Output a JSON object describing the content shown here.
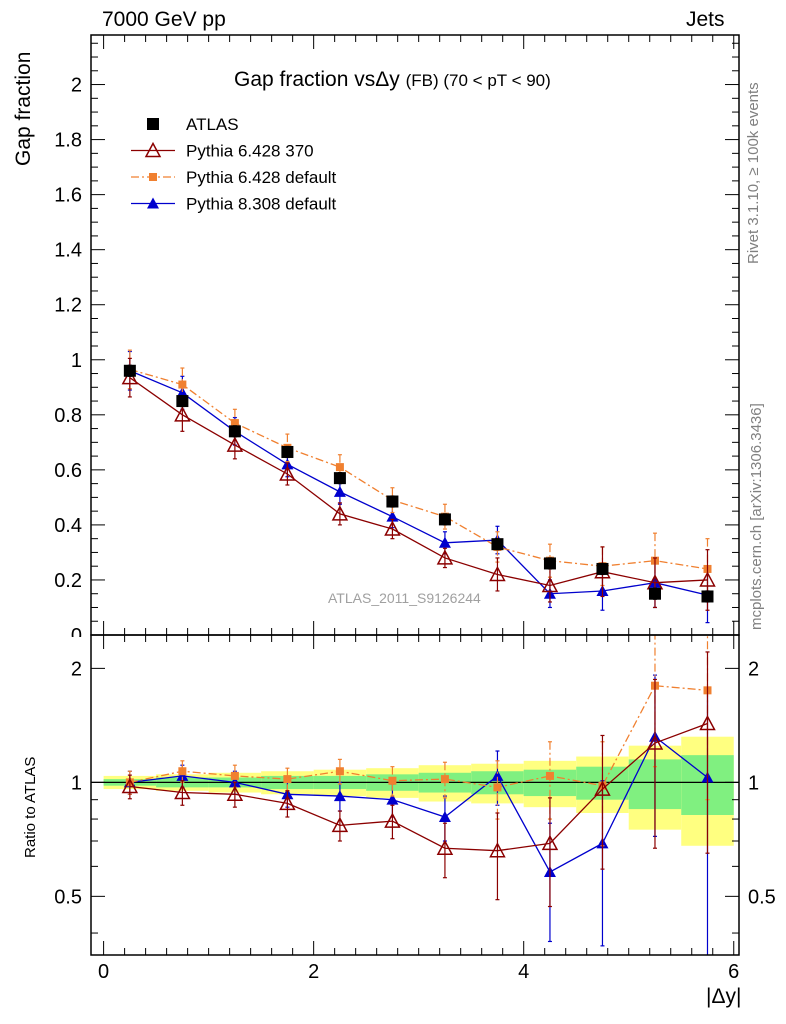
{
  "header": {
    "energy": "7000 GeV pp",
    "category": "Jets"
  },
  "side_labels": {
    "rivet": "Rivet 3.1.10, ≥ 100k events",
    "mcplots": "mcplots.cern.ch [arXiv:1306.3436]"
  },
  "chart_data": {
    "type": "scatter",
    "title_main": "Gap fraction vsΔy",
    "title_sub": "(FB) (70 < pT <  90)",
    "watermark": "ATLAS_2011_S9126244",
    "xlabel": "|Δy|",
    "ylabel": "Gap fraction",
    "ratio_ylabel": "Ratio to ATLAS",
    "xlim": [
      -0.12,
      6.05
    ],
    "ylim": [
      0,
      2.18
    ],
    "ratio_ylim": [
      0.35,
      2.45
    ],
    "x_ticks": [
      "0",
      "2",
      "4",
      "6"
    ],
    "y_ticks": [
      "0.2",
      "0.4",
      "0.6",
      "0.8",
      "1",
      "1.2",
      "1.4",
      "1.6",
      "1.8",
      "2"
    ],
    "ratio_ticks": [
      "0.5",
      "1",
      "2"
    ],
    "x": [
      0.25,
      0.75,
      1.25,
      1.75,
      2.25,
      2.75,
      3.25,
      3.75,
      4.25,
      4.75,
      5.25,
      5.75
    ],
    "legend_position": "top-left",
    "band_inner": [
      0.02,
      0.03,
      0.03,
      0.04,
      0.04,
      0.05,
      0.06,
      0.07,
      0.08,
      0.1,
      0.15,
      0.18
    ],
    "band_outer": [
      0.04,
      0.05,
      0.06,
      0.07,
      0.08,
      0.09,
      0.11,
      0.12,
      0.14,
      0.17,
      0.25,
      0.32
    ],
    "series": [
      {
        "name": "ATLAS",
        "color": "#000000",
        "marker": "square",
        "line": "none",
        "values": [
          0.96,
          0.85,
          0.74,
          0.665,
          0.57,
          0.485,
          0.42,
          0.33,
          0.26,
          0.24,
          0.15,
          0.14
        ],
        "errors": [
          0.02,
          0.02,
          0.02,
          0.02,
          0.02,
          0.02,
          0.02,
          0.02,
          0.02,
          0.02,
          0.02,
          0.02
        ],
        "ratio": [
          1.0,
          1.0,
          1.0,
          1.0,
          1.0,
          1.0,
          1.0,
          1.0,
          1.0,
          1.0,
          1.0,
          1.0
        ],
        "ratio_errors": [
          0,
          0,
          0,
          0,
          0,
          0,
          0,
          0,
          0,
          0,
          0,
          0
        ]
      },
      {
        "name": "Pythia 6.428 370",
        "color": "#8b0000",
        "marker": "triangle-open",
        "line": "solid",
        "values": [
          0.935,
          0.8,
          0.69,
          0.585,
          0.44,
          0.385,
          0.28,
          0.22,
          0.18,
          0.23,
          0.19,
          0.2
        ],
        "errors": [
          0.07,
          0.06,
          0.05,
          0.04,
          0.04,
          0.035,
          0.035,
          0.06,
          0.06,
          0.09,
          0.09,
          0.11
        ],
        "ratio": [
          0.975,
          0.94,
          0.93,
          0.88,
          0.77,
          0.79,
          0.67,
          0.66,
          0.69,
          0.96,
          1.27,
          1.43
        ],
        "ratio_errors": [
          0.07,
          0.07,
          0.07,
          0.07,
          0.07,
          0.08,
          0.11,
          0.17,
          0.22,
          0.37,
          0.6,
          0.78
        ]
      },
      {
        "name": "Pythia 6.428 default",
        "color": "#f08030",
        "marker": "square-small",
        "line": "dashdot",
        "values": [
          0.965,
          0.91,
          0.77,
          0.68,
          0.61,
          0.49,
          0.43,
          0.32,
          0.27,
          0.25,
          0.27,
          0.24
        ],
        "errors": [
          0.07,
          0.06,
          0.05,
          0.05,
          0.045,
          0.045,
          0.045,
          0.055,
          0.06,
          0.07,
          0.1,
          0.11
        ],
        "ratio": [
          1.0,
          1.07,
          1.04,
          1.02,
          1.07,
          1.01,
          1.02,
          0.97,
          1.04,
          0.98,
          1.8,
          1.75
        ],
        "ratio_errors": [
          0.07,
          0.07,
          0.07,
          0.07,
          0.08,
          0.09,
          0.11,
          0.17,
          0.24,
          0.3,
          0.7,
          0.85
        ]
      },
      {
        "name": "Pythia 8.308 default",
        "color": "#0000cd",
        "marker": "triangle",
        "line": "solid",
        "values": [
          0.96,
          0.88,
          0.74,
          0.62,
          0.52,
          0.43,
          0.335,
          0.345,
          0.15,
          0.16,
          0.19,
          0.145
        ],
        "errors": [
          0.07,
          0.06,
          0.05,
          0.045,
          0.045,
          0.04,
          0.04,
          0.05,
          0.05,
          0.07,
          0.09,
          0.1
        ],
        "ratio": [
          1.0,
          1.04,
          1.0,
          0.93,
          0.92,
          0.9,
          0.81,
          1.04,
          0.58,
          0.69,
          1.32,
          1.03
        ],
        "ratio_errors": [
          0.07,
          0.07,
          0.07,
          0.07,
          0.08,
          0.09,
          0.11,
          0.17,
          0.2,
          0.32,
          0.6,
          0.7
        ]
      }
    ]
  }
}
